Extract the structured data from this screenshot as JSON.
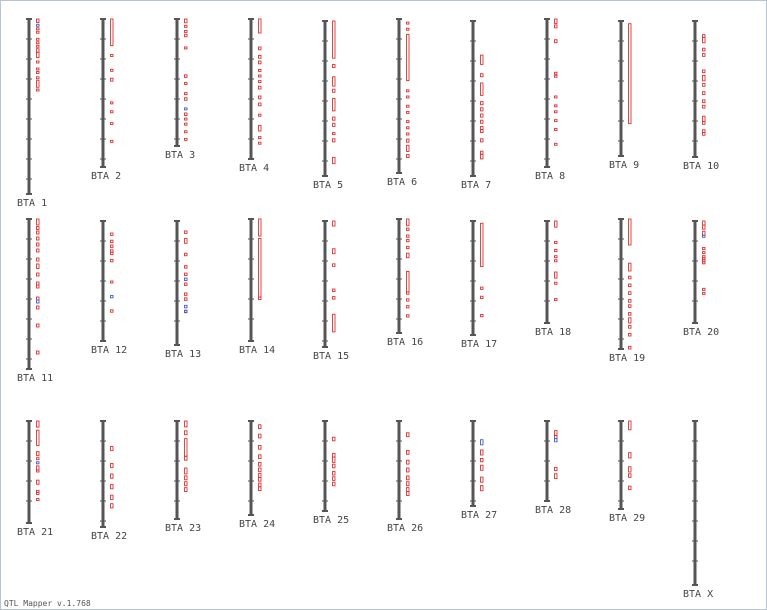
{
  "app": {
    "footer_label": "QTL Mapper v.1.768"
  },
  "colors": {
    "axis": "#555555",
    "qtl_primary": "#e03030",
    "qtl_secondary": "#4060c0"
  },
  "chromosomes": [
    {
      "label": "BTA 1",
      "marks": [
        {
          "s": 0,
          "e": 2
        },
        {
          "s": 3,
          "e": 4,
          "c": "b"
        },
        {
          "s": 5,
          "e": 6
        },
        {
          "s": 7,
          "e": 8
        },
        {
          "s": 11,
          "e": 12
        },
        {
          "s": 13,
          "e": 14
        },
        {
          "s": 15,
          "e": 16
        },
        {
          "s": 17,
          "e": 19
        },
        {
          "s": 19,
          "e": 22
        },
        {
          "s": 24,
          "e": 25
        },
        {
          "s": 28,
          "e": 29
        },
        {
          "s": 30,
          "e": 31
        },
        {
          "s": 33,
          "e": 34
        },
        {
          "s": 35,
          "e": 39
        },
        {
          "s": 40,
          "e": 41
        }
      ]
    },
    {
      "label": "BTA 2",
      "marks": [
        {
          "s": 0,
          "e": 18
        },
        {
          "s": 24,
          "e": 25
        },
        {
          "s": 34,
          "e": 35
        },
        {
          "s": 40,
          "e": 42
        },
        {
          "s": 56,
          "e": 57
        },
        {
          "s": 62,
          "e": 63
        },
        {
          "s": 70,
          "e": 71
        },
        {
          "s": 82,
          "e": 83
        }
      ]
    },
    {
      "label": "BTA 3",
      "marks": [
        {
          "s": 0,
          "e": 3
        },
        {
          "s": 5,
          "e": 6
        },
        {
          "s": 9,
          "e": 10
        },
        {
          "s": 12,
          "e": 14
        },
        {
          "s": 22,
          "e": 23
        },
        {
          "s": 44,
          "e": 46
        },
        {
          "s": 50,
          "e": 51
        },
        {
          "s": 58,
          "e": 59
        },
        {
          "s": 62,
          "e": 64
        },
        {
          "s": 70,
          "e": 71,
          "c": "b"
        },
        {
          "s": 74,
          "e": 76
        },
        {
          "s": 78,
          "e": 79
        },
        {
          "s": 82,
          "e": 83
        },
        {
          "s": 88,
          "e": 89
        },
        {
          "s": 94,
          "e": 95
        }
      ]
    },
    {
      "label": "BTA 4",
      "marks": [
        {
          "s": 0,
          "e": 10
        },
        {
          "s": 20,
          "e": 22
        },
        {
          "s": 26,
          "e": 28
        },
        {
          "s": 30,
          "e": 32
        },
        {
          "s": 36,
          "e": 37
        },
        {
          "s": 40,
          "e": 41
        },
        {
          "s": 44,
          "e": 45
        },
        {
          "s": 48,
          "e": 50
        },
        {
          "s": 55,
          "e": 57
        },
        {
          "s": 60,
          "e": 62
        },
        {
          "s": 68,
          "e": 69
        },
        {
          "s": 76,
          "e": 80
        },
        {
          "s": 84,
          "e": 85
        },
        {
          "s": 88,
          "e": 89
        }
      ]
    },
    {
      "label": "BTA 5",
      "marks": [
        {
          "s": 0,
          "e": 24
        },
        {
          "s": 28,
          "e": 30
        },
        {
          "s": 36,
          "e": 42
        },
        {
          "s": 44,
          "e": 46
        },
        {
          "s": 50,
          "e": 58
        },
        {
          "s": 62,
          "e": 64
        },
        {
          "s": 66,
          "e": 68
        },
        {
          "s": 72,
          "e": 73
        },
        {
          "s": 76,
          "e": 78
        },
        {
          "s": 88,
          "e": 92
        }
      ]
    },
    {
      "label": "BTA 6",
      "marks": [
        {
          "s": 2,
          "e": 3
        },
        {
          "s": 6,
          "e": 7
        },
        {
          "s": 10,
          "e": 40
        },
        {
          "s": 46,
          "e": 47
        },
        {
          "s": 50,
          "e": 51
        },
        {
          "s": 56,
          "e": 57
        },
        {
          "s": 60,
          "e": 61
        },
        {
          "s": 66,
          "e": 67
        },
        {
          "s": 70,
          "e": 71
        },
        {
          "s": 74,
          "e": 75
        },
        {
          "s": 78,
          "e": 80
        },
        {
          "s": 82,
          "e": 86
        },
        {
          "s": 88,
          "e": 90
        }
      ]
    },
    {
      "label": "BTA 7",
      "marks": [
        {
          "s": 22,
          "e": 28
        },
        {
          "s": 34,
          "e": 36
        },
        {
          "s": 40,
          "e": 48
        },
        {
          "s": 52,
          "e": 54
        },
        {
          "s": 56,
          "e": 58
        },
        {
          "s": 60,
          "e": 62
        },
        {
          "s": 64,
          "e": 66
        },
        {
          "s": 68,
          "e": 70
        },
        {
          "s": 70,
          "e": 72
        },
        {
          "s": 76,
          "e": 78
        },
        {
          "s": 84,
          "e": 86
        },
        {
          "s": 86,
          "e": 89
        }
      ]
    },
    {
      "label": "BTA 8",
      "marks": [
        {
          "s": 0,
          "e": 3
        },
        {
          "s": 4,
          "e": 6
        },
        {
          "s": 14,
          "e": 16
        },
        {
          "s": 36,
          "e": 37
        },
        {
          "s": 38,
          "e": 39
        },
        {
          "s": 52,
          "e": 53
        },
        {
          "s": 58,
          "e": 59
        },
        {
          "s": 62,
          "e": 63
        },
        {
          "s": 68,
          "e": 69
        },
        {
          "s": 74,
          "e": 75
        },
        {
          "s": 84,
          "e": 85
        }
      ]
    },
    {
      "label": "BTA 9",
      "marks": [
        {
          "s": 2,
          "e": 76
        }
      ]
    },
    {
      "label": "BTA 10",
      "marks": [
        {
          "s": 10,
          "e": 12
        },
        {
          "s": 12,
          "e": 16
        },
        {
          "s": 20,
          "e": 22
        },
        {
          "s": 24,
          "e": 26
        },
        {
          "s": 36,
          "e": 38
        },
        {
          "s": 40,
          "e": 44
        },
        {
          "s": 46,
          "e": 48
        },
        {
          "s": 52,
          "e": 54
        },
        {
          "s": 58,
          "e": 60
        },
        {
          "s": 62,
          "e": 64
        },
        {
          "s": 70,
          "e": 74
        },
        {
          "s": 74,
          "e": 76
        },
        {
          "s": 80,
          "e": 82
        },
        {
          "s": 82,
          "e": 84
        }
      ]
    },
    {
      "label": "BTA 11",
      "marks": [
        {
          "s": 0,
          "e": 4
        },
        {
          "s": 5,
          "e": 7
        },
        {
          "s": 8,
          "e": 10
        },
        {
          "s": 12,
          "e": 14
        },
        {
          "s": 16,
          "e": 18
        },
        {
          "s": 20,
          "e": 22
        },
        {
          "s": 26,
          "e": 28
        },
        {
          "s": 30,
          "e": 33
        },
        {
          "s": 36,
          "e": 38
        },
        {
          "s": 42,
          "e": 44
        },
        {
          "s": 44,
          "e": 46
        },
        {
          "s": 52,
          "e": 54
        },
        {
          "s": 54,
          "e": 56,
          "c": "b"
        },
        {
          "s": 58,
          "e": 60
        },
        {
          "s": 70,
          "e": 72
        },
        {
          "s": 88,
          "e": 90
        }
      ]
    },
    {
      "label": "BTA 12",
      "marks": [
        {
          "s": 10,
          "e": 12
        },
        {
          "s": 16,
          "e": 18
        },
        {
          "s": 20,
          "e": 22
        },
        {
          "s": 24,
          "e": 26
        },
        {
          "s": 26,
          "e": 28
        },
        {
          "s": 32,
          "e": 34
        },
        {
          "s": 50,
          "e": 51
        },
        {
          "s": 62,
          "e": 64,
          "c": "b"
        },
        {
          "s": 74,
          "e": 76
        }
      ]
    },
    {
      "label": "BTA 13",
      "marks": [
        {
          "s": 8,
          "e": 10
        },
        {
          "s": 14,
          "e": 18
        },
        {
          "s": 26,
          "e": 28
        },
        {
          "s": 36,
          "e": 38
        },
        {
          "s": 42,
          "e": 44
        },
        {
          "s": 46,
          "e": 48,
          "c": "b"
        },
        {
          "s": 50,
          "e": 52
        },
        {
          "s": 58,
          "e": 60
        },
        {
          "s": 62,
          "e": 64
        },
        {
          "s": 68,
          "e": 70,
          "c": "b"
        },
        {
          "s": 72,
          "e": 74
        },
        {
          "s": 72,
          "e": 73,
          "c": "b"
        }
      ]
    },
    {
      "label": "BTA 14",
      "marks": [
        {
          "s": 0,
          "e": 14
        },
        {
          "s": 16,
          "e": 64
        },
        {
          "s": 64,
          "e": 66
        }
      ]
    },
    {
      "label": "BTA 15",
      "marks": [
        {
          "s": 0,
          "e": 4
        },
        {
          "s": 22,
          "e": 26
        },
        {
          "s": 34,
          "e": 36
        },
        {
          "s": 54,
          "e": 56
        },
        {
          "s": 60,
          "e": 62
        },
        {
          "s": 74,
          "e": 88
        }
      ]
    },
    {
      "label": "BTA 16",
      "marks": [
        {
          "s": 0,
          "e": 6
        },
        {
          "s": 8,
          "e": 10
        },
        {
          "s": 14,
          "e": 16
        },
        {
          "s": 18,
          "e": 20
        },
        {
          "s": 24,
          "e": 26
        },
        {
          "s": 30,
          "e": 34
        },
        {
          "s": 46,
          "e": 64
        },
        {
          "s": 64,
          "e": 66
        },
        {
          "s": 70,
          "e": 72
        },
        {
          "s": 76,
          "e": 78
        },
        {
          "s": 84,
          "e": 86
        }
      ]
    },
    {
      "label": "BTA 17",
      "marks": [
        {
          "s": 2,
          "e": 40
        },
        {
          "s": 58,
          "e": 60
        },
        {
          "s": 66,
          "e": 68
        },
        {
          "s": 82,
          "e": 84
        }
      ]
    },
    {
      "label": "BTA 18",
      "marks": [
        {
          "s": 0,
          "e": 6
        },
        {
          "s": 20,
          "e": 22
        },
        {
          "s": 28,
          "e": 30
        },
        {
          "s": 34,
          "e": 36
        },
        {
          "s": 38,
          "e": 40
        },
        {
          "s": 50,
          "e": 56
        },
        {
          "s": 60,
          "e": 62
        },
        {
          "s": 76,
          "e": 78
        }
      ]
    },
    {
      "label": "BTA 19",
      "marks": [
        {
          "s": 0,
          "e": 20
        },
        {
          "s": 34,
          "e": 40
        },
        {
          "s": 44,
          "e": 46
        },
        {
          "s": 50,
          "e": 52
        },
        {
          "s": 56,
          "e": 58
        },
        {
          "s": 62,
          "e": 64
        },
        {
          "s": 66,
          "e": 68
        },
        {
          "s": 72,
          "e": 74
        },
        {
          "s": 76,
          "e": 80
        },
        {
          "s": 82,
          "e": 84
        },
        {
          "s": 88,
          "e": 90
        },
        {
          "s": 98,
          "e": 100
        }
      ]
    },
    {
      "label": "BTA 20",
      "marks": [
        {
          "s": 0,
          "e": 4
        },
        {
          "s": 4,
          "e": 8
        },
        {
          "s": 10,
          "e": 14
        },
        {
          "s": 14,
          "e": 16,
          "c": "b"
        },
        {
          "s": 26,
          "e": 28
        },
        {
          "s": 30,
          "e": 32
        },
        {
          "s": 34,
          "e": 36
        },
        {
          "s": 36,
          "e": 38
        },
        {
          "s": 38,
          "e": 40
        },
        {
          "s": 40,
          "e": 42
        },
        {
          "s": 66,
          "e": 68
        },
        {
          "s": 70,
          "e": 72
        }
      ]
    },
    {
      "label": "BTA 21",
      "marks": [
        {
          "s": 0,
          "e": 6
        },
        {
          "s": 9,
          "e": 24
        },
        {
          "s": 30,
          "e": 34
        },
        {
          "s": 36,
          "e": 38
        },
        {
          "s": 40,
          "e": 42,
          "c": "b"
        },
        {
          "s": 44,
          "e": 48
        },
        {
          "s": 48,
          "e": 50
        },
        {
          "s": 58,
          "e": 62
        },
        {
          "s": 68,
          "e": 70
        },
        {
          "s": 70,
          "e": 72
        },
        {
          "s": 76,
          "e": 78
        }
      ]
    },
    {
      "label": "BTA 22",
      "marks": [
        {
          "s": 24,
          "e": 28
        },
        {
          "s": 40,
          "e": 44
        },
        {
          "s": 50,
          "e": 54
        },
        {
          "s": 60,
          "e": 64
        },
        {
          "s": 70,
          "e": 74
        },
        {
          "s": 78,
          "e": 82
        }
      ]
    },
    {
      "label": "BTA 23",
      "marks": [
        {
          "s": 0,
          "e": 6
        },
        {
          "s": 10,
          "e": 14
        },
        {
          "s": 18,
          "e": 36
        },
        {
          "s": 36,
          "e": 40
        },
        {
          "s": 48,
          "e": 54
        },
        {
          "s": 56,
          "e": 60
        },
        {
          "s": 62,
          "e": 66
        },
        {
          "s": 68,
          "e": 72
        }
      ]
    },
    {
      "label": "BTA 24",
      "marks": [
        {
          "s": 4,
          "e": 8
        },
        {
          "s": 14,
          "e": 18
        },
        {
          "s": 26,
          "e": 30
        },
        {
          "s": 36,
          "e": 40
        },
        {
          "s": 44,
          "e": 48
        },
        {
          "s": 50,
          "e": 54
        },
        {
          "s": 56,
          "e": 60
        },
        {
          "s": 60,
          "e": 64
        },
        {
          "s": 66,
          "e": 70
        },
        {
          "s": 70,
          "e": 74
        }
      ]
    },
    {
      "label": "BTA 25",
      "marks": [
        {
          "s": 18,
          "e": 22
        },
        {
          "s": 36,
          "e": 40
        },
        {
          "s": 40,
          "e": 46
        },
        {
          "s": 48,
          "e": 52
        },
        {
          "s": 56,
          "e": 60
        },
        {
          "s": 62,
          "e": 66
        },
        {
          "s": 68,
          "e": 72
        }
      ]
    },
    {
      "label": "BTA 26",
      "marks": [
        {
          "s": 12,
          "e": 16
        },
        {
          "s": 30,
          "e": 34
        },
        {
          "s": 40,
          "e": 44
        },
        {
          "s": 48,
          "e": 52
        },
        {
          "s": 56,
          "e": 60
        },
        {
          "s": 62,
          "e": 66
        },
        {
          "s": 68,
          "e": 72
        },
        {
          "s": 72,
          "e": 76
        }
      ]
    },
    {
      "label": "BTA 27",
      "marks": [
        {
          "s": 22,
          "e": 28,
          "c": "b"
        },
        {
          "s": 34,
          "e": 40
        },
        {
          "s": 44,
          "e": 48
        },
        {
          "s": 52,
          "e": 58
        },
        {
          "s": 66,
          "e": 72
        },
        {
          "s": 76,
          "e": 82
        }
      ]
    },
    {
      "label": "BTA 28",
      "marks": [
        {
          "s": 12,
          "e": 18
        },
        {
          "s": 18,
          "e": 22
        },
        {
          "s": 22,
          "e": 26,
          "c": "b"
        },
        {
          "s": 58,
          "e": 62
        },
        {
          "s": 66,
          "e": 72
        }
      ]
    },
    {
      "label": "BTA 29",
      "marks": [
        {
          "s": 0,
          "e": 10
        },
        {
          "s": 36,
          "e": 42
        },
        {
          "s": 52,
          "e": 58
        },
        {
          "s": 60,
          "e": 64
        },
        {
          "s": 74,
          "e": 78
        }
      ]
    },
    {
      "label": "BTA X",
      "marks": []
    }
  ]
}
